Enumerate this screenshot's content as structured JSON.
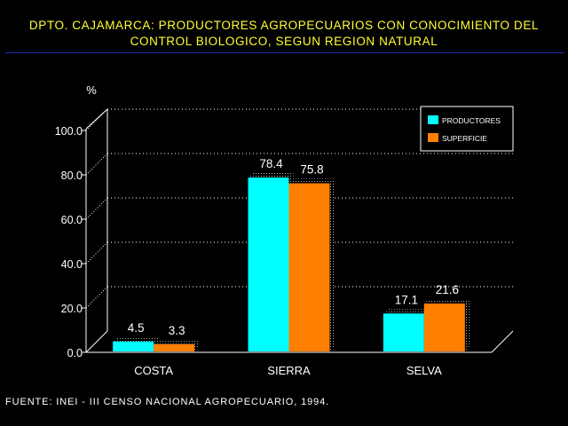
{
  "header": {
    "title_line1": "DPTO. CAJAMARCA: PRODUCTORES AGROPECUARIOS CON CONOCIMIENTO DEL",
    "title_line2": "CONTROL BIOLOGICO, SEGUN REGION NATURAL"
  },
  "footer": {
    "source": "FUENTE: INEI - III CENSO NACIONAL AGROPECUARIO, 1994."
  },
  "chart_data": {
    "type": "bar",
    "title": "DPTO. CAJAMARCA: PRODUCTORES AGROPECUARIOS CON CONOCIMIENTO DEL CONTROL BIOLOGICO, SEGUN REGION NATURAL",
    "ylabel": "%",
    "xlabel": "",
    "categories": [
      "COSTA",
      "SIERRA",
      "SELVA"
    ],
    "series": [
      {
        "name": "PRODUCTORES",
        "values": [
          4.5,
          78.4,
          17.1
        ],
        "labels": [
          "4.5",
          "78.4",
          "17.1"
        ],
        "color": "#00ffff"
      },
      {
        "name": "SUPERFICIE",
        "values": [
          3.3,
          75.8,
          21.6
        ],
        "labels": [
          "3.3",
          "75.8",
          "21.6"
        ],
        "color": "#ff7f00"
      }
    ],
    "ylim": [
      0,
      100
    ],
    "yticks": [
      "0.0",
      "20.0",
      "40.0",
      "60.0",
      "80.0",
      "100.0"
    ],
    "grid": true,
    "legend": "top-right",
    "colors": {
      "background": "#000000",
      "title": "#ffff33",
      "rule": "#1a2fb0",
      "axis": "#ffffff"
    }
  }
}
